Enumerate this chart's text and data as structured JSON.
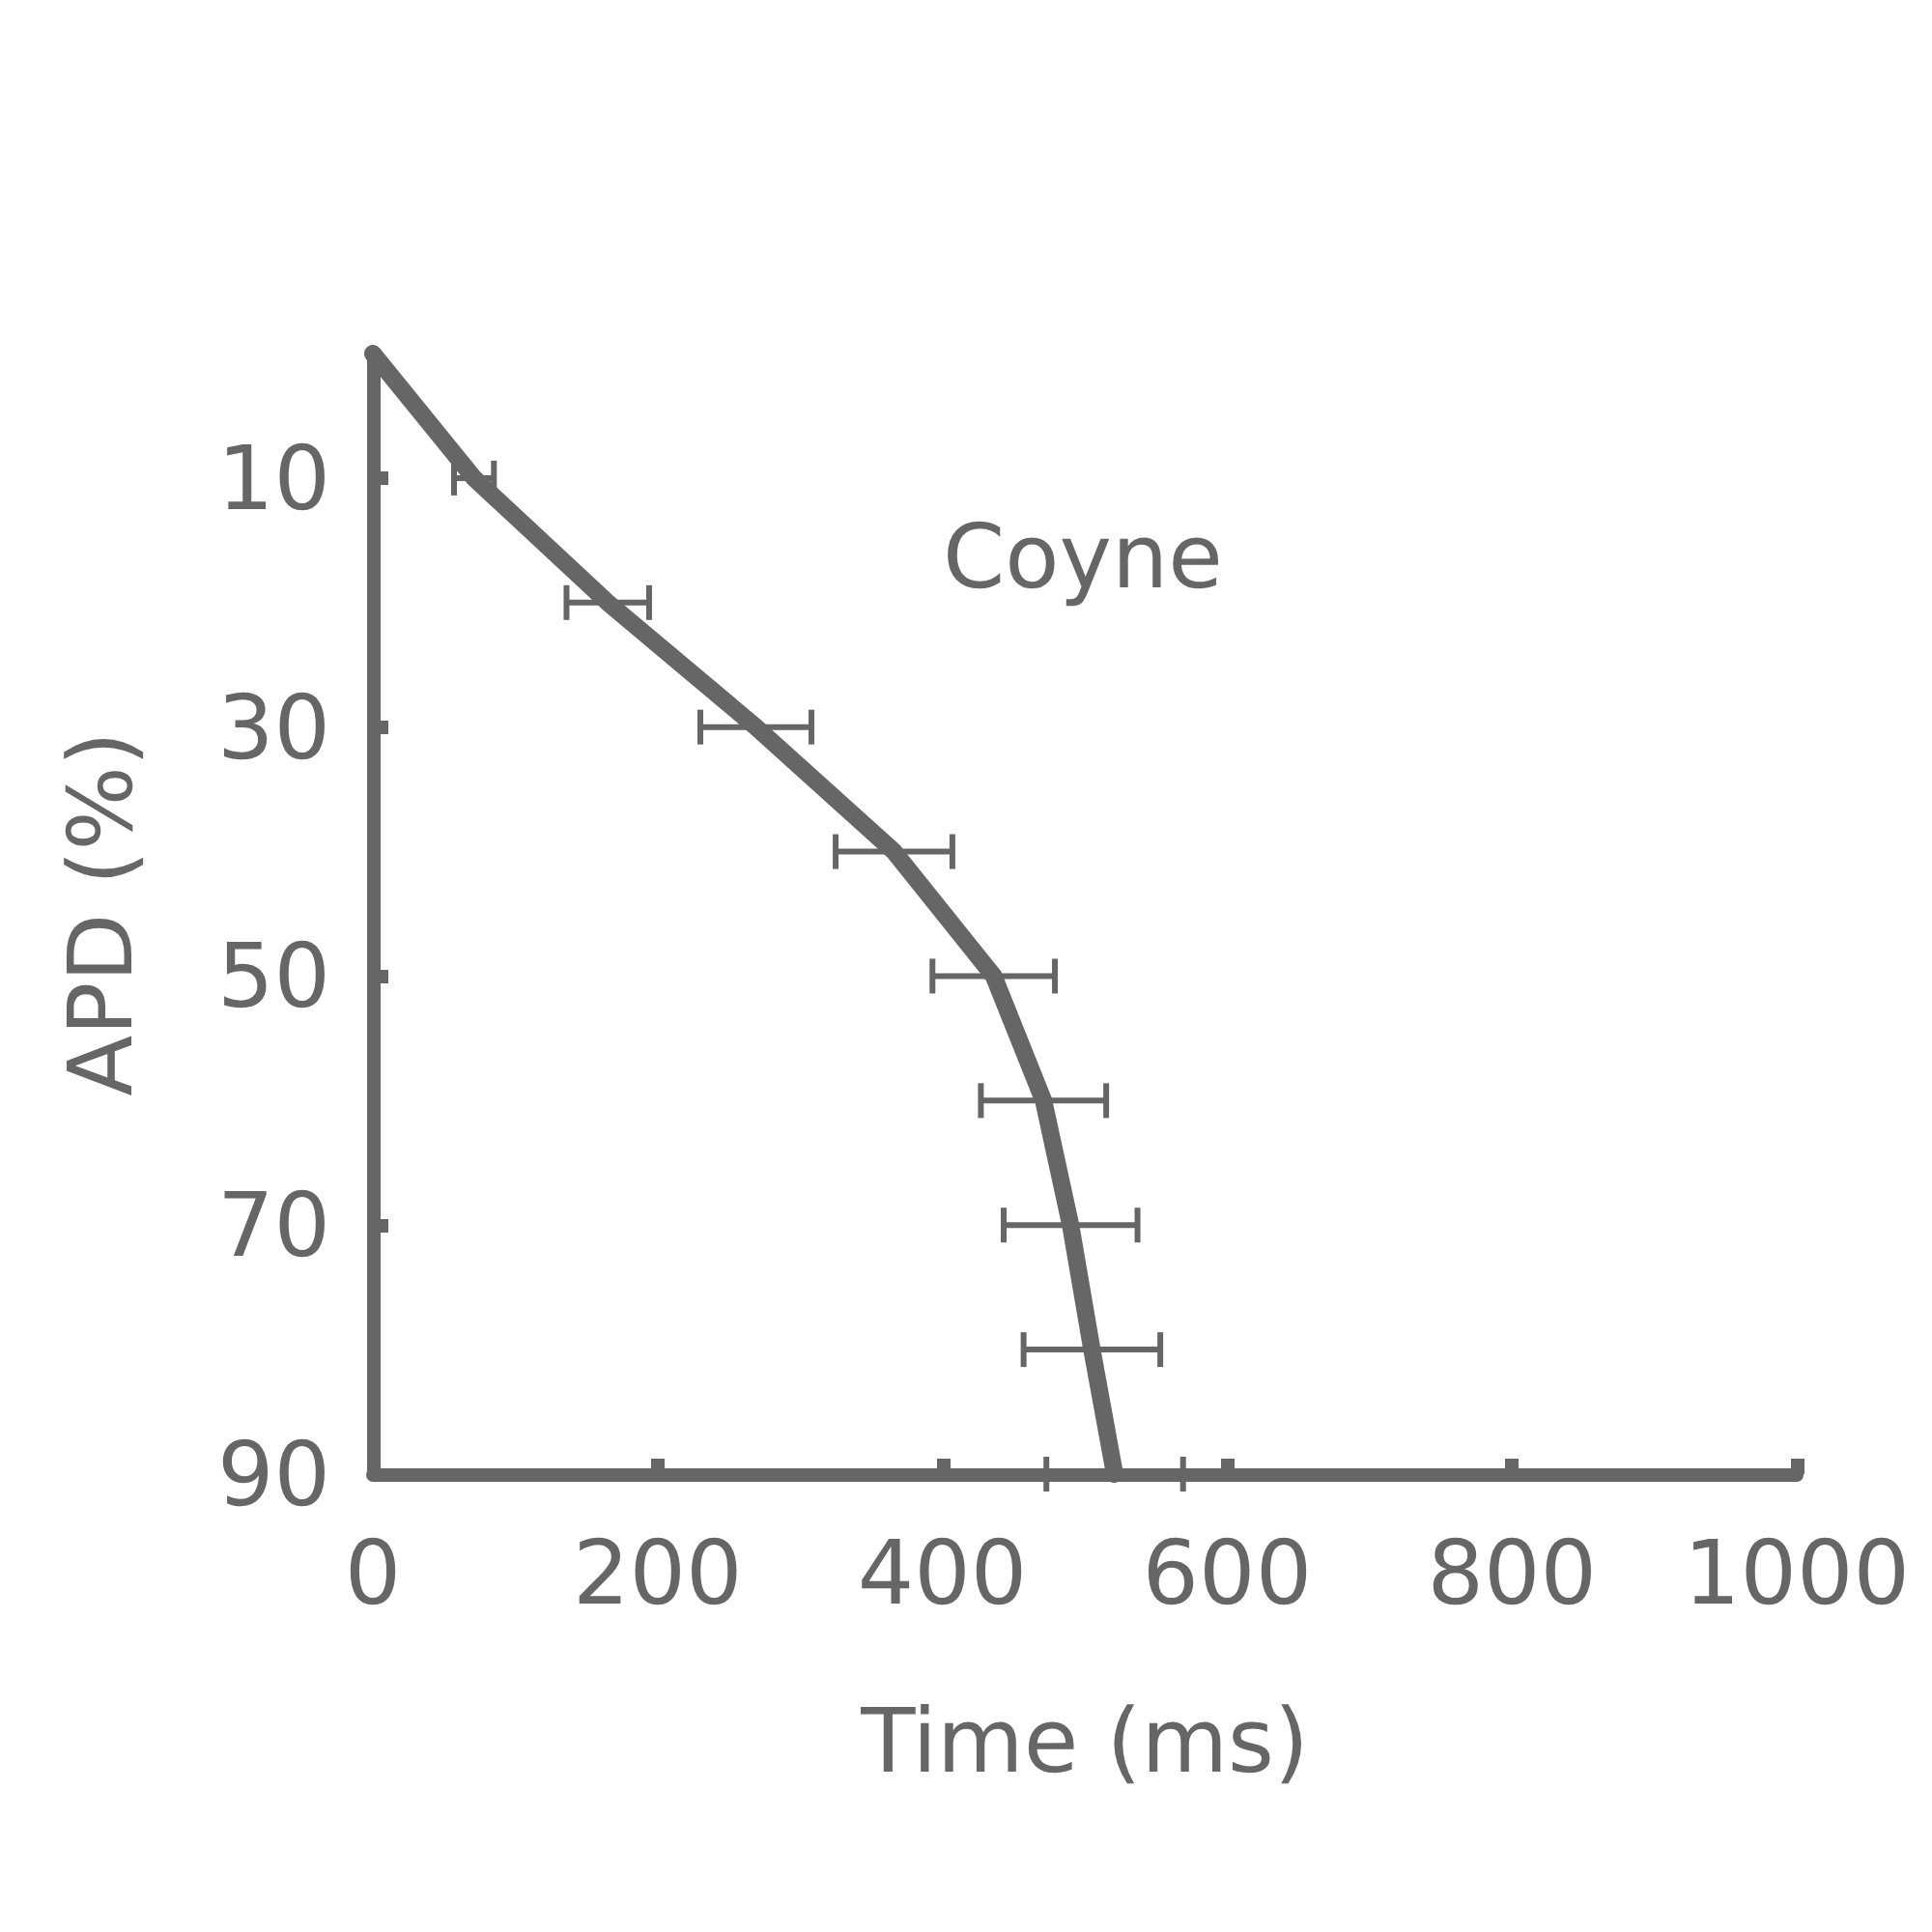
{
  "chart_data": {
    "type": "line",
    "xlabel": "Time (ms)",
    "ylabel": "APD (%)",
    "annotations": [
      "Coyne"
    ],
    "series": [
      {
        "color": "#666666",
        "x": [
          0,
          71,
          165,
          269,
          366,
          436,
          471,
          490,
          505,
          521
        ],
        "values": [
          0,
          10,
          20,
          30,
          40,
          50,
          60,
          70,
          80,
          90
        ],
        "xerrors": [
          null,
          14,
          29,
          39,
          41,
          43,
          44,
          47,
          48,
          48
        ]
      }
    ],
    "xlim": [
      0,
      1000
    ],
    "xticks": [
      0,
      200,
      400,
      600,
      800,
      1000
    ],
    "ylim": [
      90,
      0
    ],
    "yticks": [
      10,
      30,
      50,
      70,
      90
    ],
    "line_style": "solid"
  }
}
